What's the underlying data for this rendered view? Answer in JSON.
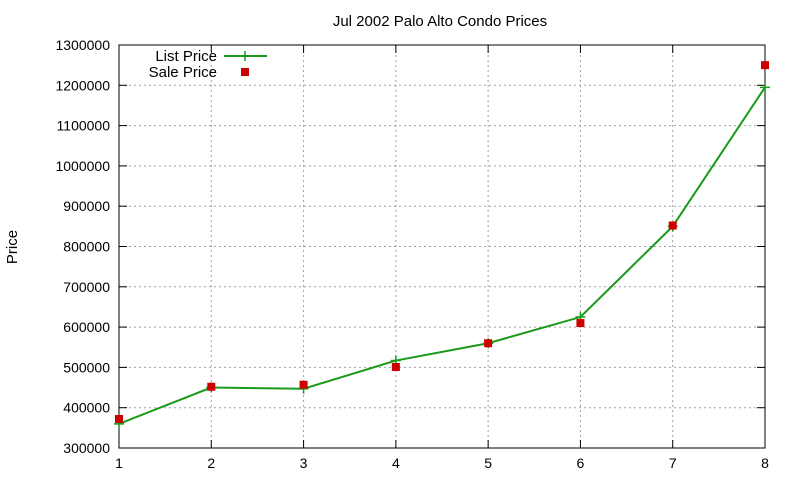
{
  "chart_data": {
    "type": "line",
    "title": "Jul 2002 Palo Alto Condo Prices",
    "xlabel": "",
    "ylabel": "Price",
    "xlim": [
      1,
      8
    ],
    "ylim": [
      300000,
      1300000
    ],
    "xticks": [
      1,
      2,
      3,
      4,
      5,
      6,
      7,
      8
    ],
    "yticks": [
      300000,
      400000,
      500000,
      600000,
      700000,
      800000,
      900000,
      1000000,
      1100000,
      1200000,
      1300000
    ],
    "grid": true,
    "legend_position": "top-left",
    "series": [
      {
        "name": "List Price",
        "style": "line-with-plus-markers",
        "color": "#1a9a1a",
        "x": [
          1,
          2,
          3,
          4,
          5,
          6,
          7,
          8
        ],
        "y": [
          360000,
          450000,
          447000,
          517000,
          560000,
          625000,
          850000,
          1195000
        ]
      },
      {
        "name": "Sale Price",
        "style": "square-markers",
        "color": "#cc0000",
        "x": [
          1,
          2,
          3,
          4,
          5,
          6,
          7,
          8
        ],
        "y": [
          372000,
          452000,
          457000,
          501000,
          560000,
          610000,
          852000,
          1250000
        ]
      }
    ]
  }
}
